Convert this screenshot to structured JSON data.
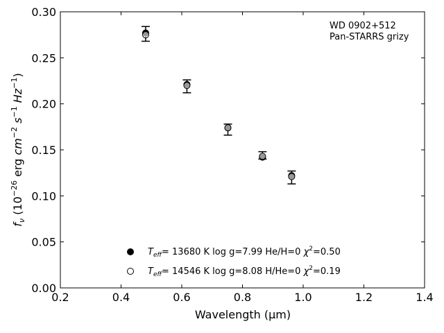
{
  "chart_data": {
    "type": "scatter",
    "xlabel": "Wavelength (μm)",
    "ylabel_parts": {
      "f": "f",
      "nu": "ν",
      "open": " (10",
      "exp26": "−26",
      "erg": " erg ",
      "cm": "cm",
      "exp_m2": "−2",
      "s": " s",
      "exp_m1": "−1",
      "hz": " Hz",
      "exp_m1b": "−1",
      "close": ")"
    },
    "xlim": [
      0.2,
      1.4
    ],
    "ylim": [
      0.0,
      0.3
    ],
    "x_ticks": [
      "0.2",
      "0.4",
      "0.6",
      "0.8",
      "1.0",
      "1.2",
      "1.4"
    ],
    "y_ticks": [
      "0.00",
      "0.05",
      "0.10",
      "0.15",
      "0.20",
      "0.25",
      "0.30"
    ],
    "annotation": [
      "WD 0902+512",
      "Pan-STARRS grizy"
    ],
    "observed": {
      "x": [
        0.481,
        0.617,
        0.752,
        0.866,
        0.962
      ],
      "y": [
        0.276,
        0.219,
        0.172,
        0.144,
        0.12
      ],
      "yerr": [
        0.008,
        0.007,
        0.006,
        0.004,
        0.007
      ]
    },
    "series": [
      {
        "label_parts": {
          "T": "T",
          "eff": "eff",
          "rest": "= 13680 K  log g=7.99  He/H=0  ",
          "chi": "χ",
          "two": "2",
          "val": "=0.50"
        },
        "marker": "filled",
        "x": [
          0.481,
          0.617,
          0.752,
          0.866,
          0.962
        ],
        "y": [
          0.277,
          0.221,
          0.174,
          0.142,
          0.122
        ]
      },
      {
        "label_parts": {
          "T": "T",
          "eff": "eff",
          "rest": "= 14546 K  log g=8.08  H/He=0  ",
          "chi": "χ",
          "two": "2",
          "val": "=0.19"
        },
        "marker": "open",
        "x": [
          0.481,
          0.617,
          0.752,
          0.866,
          0.962
        ],
        "y": [
          0.275,
          0.22,
          0.174,
          0.143,
          0.121
        ]
      }
    ],
    "legend_placement": "bottom-center",
    "grid": false
  }
}
